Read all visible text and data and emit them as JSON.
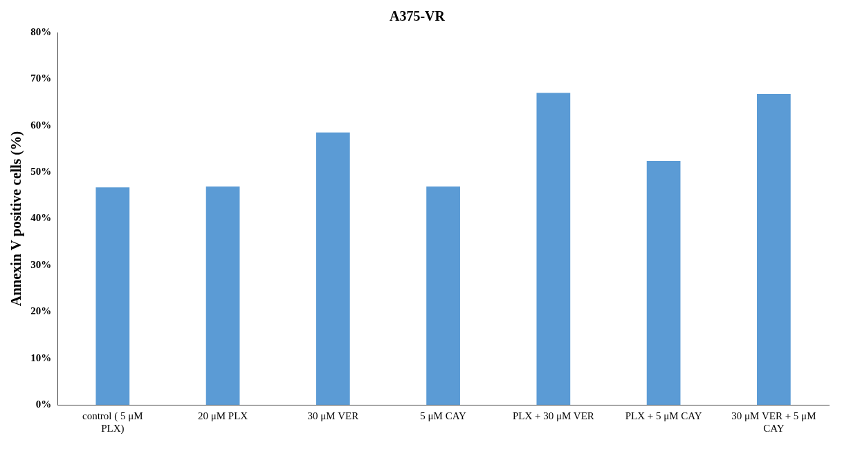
{
  "chart_data": {
    "type": "bar",
    "title": "A375-VR",
    "ylabel": "Annexin V positive cells (%)",
    "categories": [
      "control ( 5 μM PLX)",
      "20 μM PLX",
      "30 μM VER",
      "5 μM CAY",
      "PLX + 30 μM VER",
      "PLX + 5 μM CAY",
      "30 μM VER + 5 μM CAY"
    ],
    "values": [
      46.7,
      46.9,
      58.5,
      46.9,
      67.0,
      52.4,
      66.8
    ],
    "color": "#5b9bd5",
    "ylim": [
      0,
      80
    ],
    "yticks": [
      {
        "value": 0,
        "label": "0%"
      },
      {
        "value": 10,
        "label": "10%"
      },
      {
        "value": 20,
        "label": "20%"
      },
      {
        "value": 30,
        "label": "30%"
      },
      {
        "value": 40,
        "label": "40%"
      },
      {
        "value": 50,
        "label": "50%"
      },
      {
        "value": 60,
        "label": "60%"
      },
      {
        "value": 70,
        "label": "70%"
      },
      {
        "value": 80,
        "label": "80%"
      }
    ],
    "grid": false,
    "legend": false
  }
}
